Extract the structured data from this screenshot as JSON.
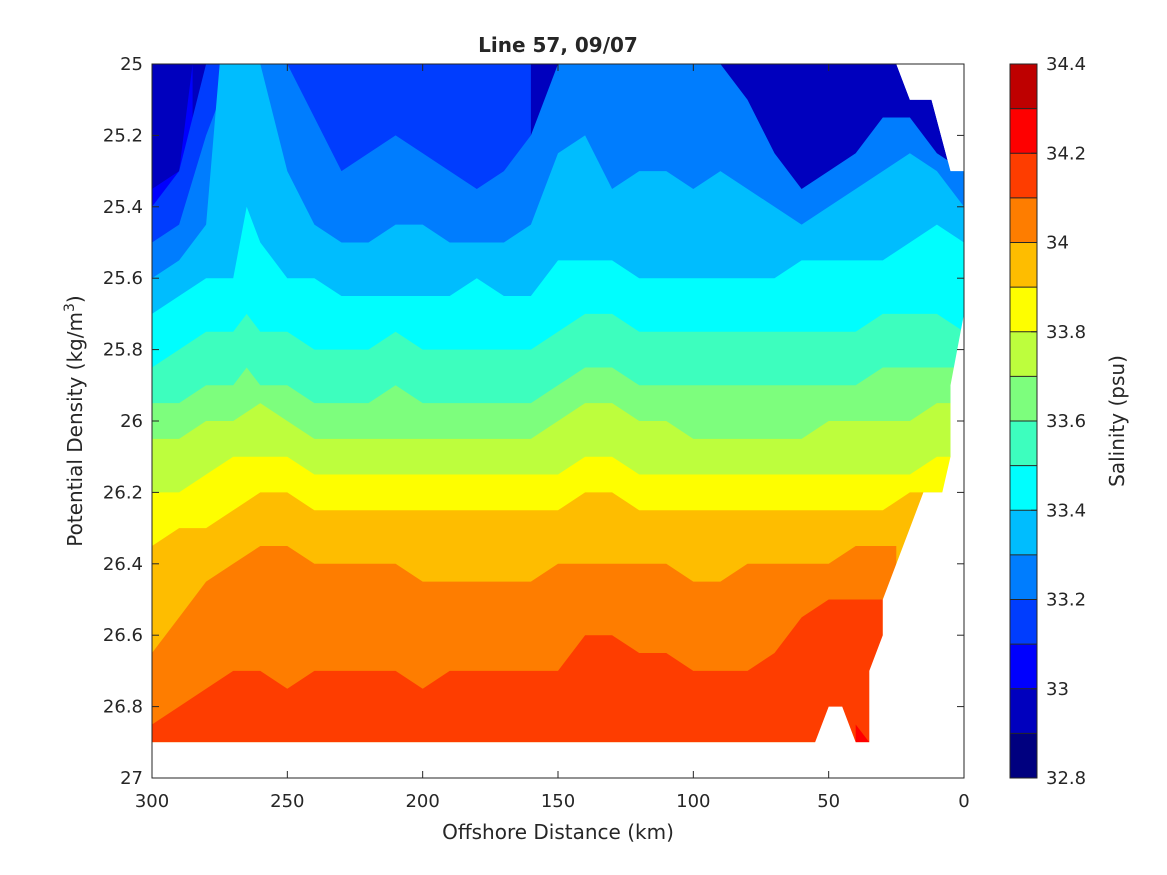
{
  "chart_data": {
    "type": "contour",
    "title": "Line 57, 09/07",
    "xlabel": "Offshore Distance (km)",
    "ylabel": {
      "main": "Potential Density (kg/m",
      "sup": "3",
      "close": ")"
    },
    "colorbar_label": "Salinity (psu)",
    "xlim": [
      300,
      0
    ],
    "ylim": [
      25,
      27
    ],
    "x_reversed": true,
    "y_reversed": true,
    "xticks": [
      300,
      250,
      200,
      150,
      100,
      50,
      0
    ],
    "yticks": [
      25,
      25.2,
      25.4,
      25.6,
      25.8,
      26,
      26.2,
      26.4,
      26.6,
      26.8,
      27
    ],
    "ytick_labels": [
      "25",
      "25.2",
      "25.4",
      "25.6",
      "25.8",
      "26",
      "26.2",
      "26.4",
      "26.6",
      "26.8",
      "27"
    ],
    "colorbar_range": [
      32.8,
      34.4
    ],
    "colorbar_ticks": [
      32.8,
      33,
      33.2,
      33.4,
      33.6,
      33.8,
      34,
      34.2,
      34.4
    ],
    "level_step": 0.1,
    "level_colors": [
      "#00007f",
      "#0000be",
      "#0000fe",
      "#003dfe",
      "#007dfe",
      "#00bdfe",
      "#00fefe",
      "#3dfebe",
      "#7dfe7d",
      "#bdfe3d",
      "#fefe00",
      "#febd00",
      "#fe7d00",
      "#fe3d00",
      "#fe0000",
      "#be0000"
    ],
    "grid": false,
    "data_coverage": {
      "min_density": 25,
      "max_density": 26.9,
      "outline": [
        [
          300,
          25
        ],
        [
          25,
          25
        ],
        [
          20,
          25.1
        ],
        [
          12,
          25.1
        ],
        [
          5,
          25.3
        ],
        [
          0,
          25.3
        ],
        [
          0,
          25.7
        ],
        [
          5,
          25.9
        ],
        [
          5,
          26.1
        ],
        [
          8,
          26.2
        ],
        [
          15,
          26.2
        ],
        [
          20,
          26.3
        ],
        [
          30,
          26.5
        ],
        [
          30,
          26.6
        ],
        [
          35,
          26.7
        ],
        [
          35,
          26.9
        ],
        [
          40,
          26.9
        ],
        [
          45,
          26.8
        ],
        [
          50,
          26.8
        ],
        [
          55,
          26.9
        ],
        [
          300,
          26.9
        ]
      ]
    },
    "isopycnal_contours": [
      {
        "level": 33.0,
        "x": [
          300,
          290,
          285
        ],
        "y": [
          25.35,
          25.3,
          25.0
        ]
      },
      {
        "level": 33.1,
        "x": [
          300,
          290,
          280,
          270,
          260,
          250,
          240,
          230,
          220,
          210,
          200,
          190,
          180,
          170,
          160
        ],
        "y": [
          25.4,
          25.3,
          25.0,
          25.0,
          25.0,
          25.0,
          25.0,
          25.0,
          25.0,
          25.0,
          25.0,
          25.0,
          25.0,
          25.0,
          25.0
        ]
      },
      {
        "level": 33.2,
        "x": [
          300,
          290,
          280,
          270,
          260,
          250,
          240,
          230,
          220,
          210,
          200,
          190,
          180,
          170,
          160,
          150,
          140,
          130,
          120,
          110,
          100,
          90,
          80,
          70,
          60,
          50,
          40,
          30,
          20,
          10,
          0
        ],
        "y": [
          25.5,
          25.45,
          25.2,
          25.0,
          25.0,
          25.0,
          25.15,
          25.3,
          25.25,
          25.2,
          25.25,
          25.3,
          25.35,
          25.3,
          25.2,
          25.0,
          25.0,
          25.0,
          25.0,
          25.0,
          25.0,
          25.0,
          25.1,
          25.25,
          25.35,
          25.3,
          25.25,
          25.15,
          25.15,
          25.25,
          25.3
        ]
      },
      {
        "level": 33.3,
        "x": [
          300,
          290,
          280,
          275,
          270,
          260,
          250,
          240,
          230,
          220,
          210,
          200,
          190,
          180,
          170,
          160,
          150,
          140,
          130,
          120,
          110,
          100,
          90,
          80,
          70,
          60,
          50,
          40,
          30,
          20,
          10,
          0
        ],
        "y": [
          25.6,
          25.55,
          25.45,
          25.0,
          25.0,
          25.0,
          25.3,
          25.45,
          25.5,
          25.5,
          25.45,
          25.45,
          25.5,
          25.5,
          25.5,
          25.45,
          25.25,
          25.2,
          25.35,
          25.3,
          25.3,
          25.35,
          25.3,
          25.35,
          25.4,
          25.45,
          25.4,
          25.35,
          25.3,
          25.25,
          25.3,
          25.4
        ]
      },
      {
        "level": 33.4,
        "x": [
          300,
          290,
          280,
          270,
          265,
          260,
          250,
          240,
          230,
          220,
          210,
          200,
          190,
          180,
          170,
          160,
          150,
          140,
          130,
          120,
          110,
          100,
          90,
          80,
          70,
          60,
          50,
          40,
          30,
          20,
          10,
          0
        ],
        "y": [
          25.7,
          25.65,
          25.6,
          25.6,
          25.4,
          25.5,
          25.6,
          25.6,
          25.65,
          25.65,
          25.65,
          25.65,
          25.65,
          25.6,
          25.65,
          25.65,
          25.55,
          25.55,
          25.55,
          25.6,
          25.6,
          25.6,
          25.6,
          25.6,
          25.6,
          25.55,
          25.55,
          25.55,
          25.55,
          25.5,
          25.45,
          25.5
        ]
      },
      {
        "level": 33.5,
        "x": [
          300,
          290,
          280,
          270,
          265,
          260,
          250,
          240,
          230,
          220,
          210,
          200,
          190,
          180,
          170,
          160,
          150,
          140,
          130,
          120,
          110,
          100,
          90,
          80,
          70,
          60,
          50,
          40,
          30,
          20,
          10,
          0
        ],
        "y": [
          25.85,
          25.8,
          25.75,
          25.75,
          25.7,
          25.75,
          25.75,
          25.8,
          25.8,
          25.8,
          25.75,
          25.8,
          25.8,
          25.8,
          25.8,
          25.8,
          25.75,
          25.7,
          25.7,
          25.75,
          25.75,
          25.75,
          25.75,
          25.75,
          25.75,
          25.75,
          25.75,
          25.75,
          25.7,
          25.7,
          25.7,
          25.75
        ]
      },
      {
        "level": 33.6,
        "x": [
          300,
          290,
          280,
          270,
          265,
          260,
          250,
          240,
          230,
          220,
          210,
          200,
          190,
          180,
          170,
          160,
          150,
          140,
          130,
          120,
          110,
          100,
          90,
          80,
          70,
          60,
          50,
          40,
          30,
          20,
          10,
          0
        ],
        "y": [
          25.95,
          25.95,
          25.9,
          25.9,
          25.85,
          25.9,
          25.9,
          25.95,
          25.95,
          25.95,
          25.9,
          25.95,
          25.95,
          25.95,
          25.95,
          25.95,
          25.9,
          25.85,
          25.85,
          25.9,
          25.9,
          25.9,
          25.9,
          25.9,
          25.9,
          25.9,
          25.9,
          25.9,
          25.85,
          25.85,
          25.85,
          25.85
        ]
      },
      {
        "level": 33.7,
        "x": [
          300,
          290,
          280,
          270,
          260,
          250,
          240,
          230,
          220,
          210,
          200,
          190,
          180,
          170,
          160,
          150,
          140,
          130,
          120,
          110,
          100,
          90,
          80,
          70,
          60,
          50,
          40,
          30,
          20,
          10,
          5
        ],
        "y": [
          26.05,
          26.05,
          26.0,
          26.0,
          25.95,
          26.0,
          26.05,
          26.05,
          26.05,
          26.05,
          26.05,
          26.05,
          26.05,
          26.05,
          26.05,
          26.0,
          25.95,
          25.95,
          26.0,
          26.0,
          26.05,
          26.05,
          26.05,
          26.05,
          26.05,
          26.0,
          26.0,
          26.0,
          26.0,
          25.95,
          25.95
        ]
      },
      {
        "level": 33.8,
        "x": [
          300,
          290,
          280,
          270,
          260,
          250,
          240,
          230,
          220,
          210,
          200,
          190,
          180,
          170,
          160,
          150,
          140,
          130,
          120,
          110,
          100,
          90,
          80,
          70,
          60,
          50,
          40,
          30,
          20,
          10,
          5
        ],
        "y": [
          26.2,
          26.2,
          26.15,
          26.1,
          26.1,
          26.1,
          26.15,
          26.15,
          26.15,
          26.15,
          26.15,
          26.15,
          26.15,
          26.15,
          26.15,
          26.15,
          26.1,
          26.1,
          26.15,
          26.15,
          26.15,
          26.15,
          26.15,
          26.15,
          26.15,
          26.15,
          26.15,
          26.15,
          26.15,
          26.1,
          26.1
        ]
      },
      {
        "level": 33.9,
        "x": [
          300,
          290,
          280,
          270,
          260,
          250,
          240,
          230,
          220,
          210,
          200,
          190,
          180,
          170,
          160,
          150,
          140,
          130,
          120,
          110,
          100,
          90,
          80,
          70,
          60,
          50,
          40,
          30,
          20,
          10,
          8
        ],
        "y": [
          26.35,
          26.3,
          26.3,
          26.25,
          26.2,
          26.2,
          26.25,
          26.25,
          26.25,
          26.25,
          26.25,
          26.25,
          26.25,
          26.25,
          26.25,
          26.25,
          26.2,
          26.2,
          26.25,
          26.25,
          26.25,
          26.25,
          26.25,
          26.25,
          26.25,
          26.25,
          26.25,
          26.25,
          26.2,
          26.2,
          26.2
        ]
      },
      {
        "level": 34.0,
        "x": [
          300,
          290,
          280,
          270,
          260,
          250,
          240,
          230,
          220,
          210,
          200,
          190,
          180,
          170,
          160,
          150,
          140,
          130,
          120,
          110,
          100,
          90,
          80,
          70,
          60,
          50,
          40,
          30,
          25
        ],
        "y": [
          26.65,
          26.55,
          26.45,
          26.4,
          26.35,
          26.35,
          26.4,
          26.4,
          26.4,
          26.4,
          26.45,
          26.45,
          26.45,
          26.45,
          26.45,
          26.4,
          26.4,
          26.4,
          26.4,
          26.4,
          26.45,
          26.45,
          26.4,
          26.4,
          26.4,
          26.4,
          26.35,
          26.35,
          26.35
        ]
      },
      {
        "level": 34.1,
        "x": [
          300,
          290,
          280,
          270,
          260,
          250,
          240,
          230,
          220,
          210,
          200,
          190,
          180,
          170,
          160,
          150,
          140,
          130,
          120,
          110,
          100,
          90,
          80,
          70,
          60,
          50,
          40,
          30
        ],
        "y": [
          26.85,
          26.8,
          26.75,
          26.7,
          26.7,
          26.75,
          26.7,
          26.7,
          26.7,
          26.7,
          26.75,
          26.7,
          26.7,
          26.7,
          26.7,
          26.7,
          26.6,
          26.6,
          26.65,
          26.65,
          26.7,
          26.7,
          26.7,
          26.65,
          26.55,
          26.5,
          26.5,
          26.5
        ]
      },
      {
        "level": 34.2,
        "x": [
          40,
          35
        ],
        "y": [
          26.85,
          26.9
        ]
      }
    ]
  }
}
